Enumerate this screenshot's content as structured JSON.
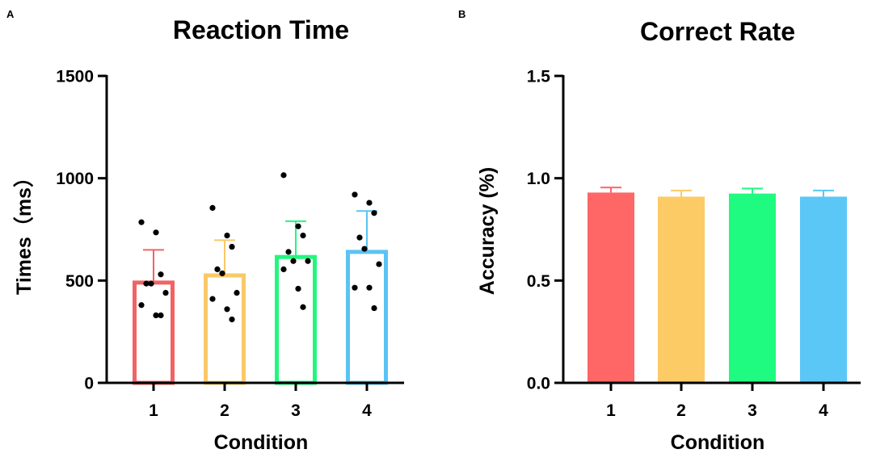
{
  "chart_data": [
    {
      "panel": "A",
      "type": "bar",
      "bar_style": "outline",
      "title": "Reaction Time",
      "xlabel": "Condition",
      "ylabel": "Times（ms）",
      "ylim": [
        0,
        1500
      ],
      "yticks": [
        0,
        500,
        1000,
        1500
      ],
      "yticklabels": [
        "0",
        "500",
        "1000",
        "1500"
      ],
      "categories": [
        "1",
        "2",
        "3",
        "4"
      ],
      "values": [
        490,
        525,
        615,
        640
      ],
      "error": [
        160,
        172,
        175,
        200
      ],
      "colors": [
        "#F06466",
        "#F9C968",
        "#23F67D",
        "#5BC3F4"
      ],
      "points": [
        [
          785,
          735,
          530,
          485,
          485,
          440,
          380,
          330,
          330
        ],
        [
          855,
          720,
          665,
          555,
          535,
          440,
          410,
          360,
          310
        ],
        [
          1015,
          765,
          720,
          640,
          595,
          595,
          555,
          460,
          370
        ],
        [
          920,
          880,
          830,
          710,
          655,
          580,
          465,
          465,
          365
        ]
      ]
    },
    {
      "panel": "B",
      "type": "bar",
      "bar_style": "filled",
      "title": "Correct Rate",
      "xlabel": "Condition",
      "ylabel": "Accuracy (%)",
      "ylim": [
        0,
        1.5
      ],
      "yticks": [
        0,
        0.5,
        1.0,
        1.5
      ],
      "yticklabels": [
        "0.0",
        "0.5",
        "1.0",
        "1.5"
      ],
      "categories": [
        "1",
        "2",
        "3",
        "4"
      ],
      "values": [
        0.93,
        0.91,
        0.925,
        0.91
      ],
      "error": [
        0.025,
        0.03,
        0.025,
        0.03
      ],
      "colors": [
        "#FF6666",
        "#FCCB66",
        "#1FFA80",
        "#5BC7F7"
      ]
    }
  ]
}
